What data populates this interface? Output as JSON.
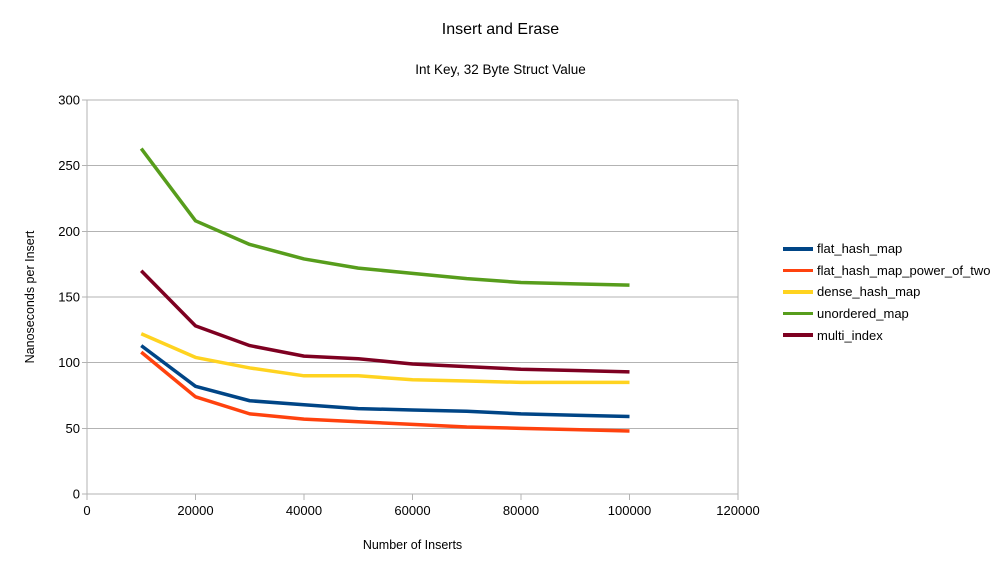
{
  "chart_data": {
    "type": "line",
    "title": "Insert and Erase",
    "subtitle": "Int Key, 32 Byte Struct Value",
    "xlabel": "Number of Inserts",
    "ylabel": "Nanoseconds per Insert",
    "xlim": [
      0,
      120000
    ],
    "ylim": [
      0,
      300
    ],
    "xticks": [
      0,
      20000,
      40000,
      60000,
      80000,
      100000,
      120000
    ],
    "yticks": [
      0,
      50,
      100,
      150,
      200,
      250,
      300
    ],
    "grid": "horizontal-only",
    "legend_position": "right",
    "axis_color": "#b3b3b3",
    "background_color": "#ffffff",
    "x": [
      10000,
      20000,
      30000,
      40000,
      50000,
      60000,
      70000,
      80000,
      90000,
      100000
    ],
    "series": [
      {
        "name": "flat_hash_map",
        "color": "#004586",
        "values": [
          113,
          82,
          71,
          68,
          65,
          64,
          63,
          61,
          60,
          59
        ]
      },
      {
        "name": "flat_hash_map_power_of_two",
        "color": "#ff420e",
        "values": [
          108,
          74,
          61,
          57,
          55,
          53,
          51,
          50,
          49,
          48
        ]
      },
      {
        "name": "dense_hash_map",
        "color": "#ffd320",
        "values": [
          122,
          104,
          96,
          90,
          90,
          87,
          86,
          85,
          85,
          85
        ]
      },
      {
        "name": "unordered_map",
        "color": "#579d1c",
        "values": [
          263,
          208,
          190,
          179,
          172,
          168,
          164,
          161,
          160,
          159
        ]
      },
      {
        "name": "multi_index",
        "color": "#7e0021",
        "values": [
          170,
          128,
          113,
          105,
          103,
          99,
          97,
          95,
          94,
          93
        ]
      }
    ]
  }
}
